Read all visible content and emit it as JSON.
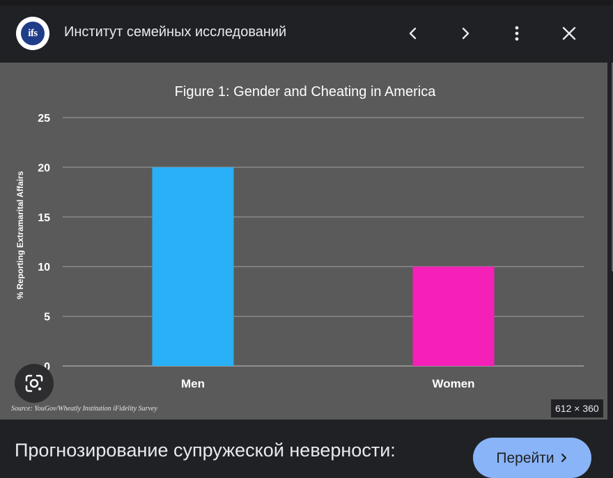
{
  "header": {
    "logo_text": "ifs",
    "site_title": "Институт семейных исследований",
    "icons": [
      "chevron-left-icon",
      "chevron-right-icon",
      "more-vert-icon",
      "close-icon"
    ]
  },
  "chart_data": {
    "type": "bar",
    "title": "Figure 1: Gender and Cheating in America",
    "categories": [
      "Men",
      "Women"
    ],
    "values": [
      20,
      10
    ],
    "colors": [
      "#29b0f6",
      "#f520b8"
    ],
    "xlabel": "",
    "ylabel": "% Reporting Extramarital Affairs",
    "ylim": [
      0,
      25
    ],
    "yticks": [
      0,
      5,
      10,
      15,
      20,
      25
    ],
    "grid": true,
    "background": "#5a5a5a",
    "source": "Source: YouGov/Wheatly Institution iFidelity Survey"
  },
  "image_dims": "612 × 360",
  "lens_icon": "google-lens-icon",
  "caption": "Прогнозирование супружеской неверности:",
  "goto_button": {
    "label": "Перейти",
    "icon": "chevron-right-icon",
    "color": "#8ab4f8"
  }
}
